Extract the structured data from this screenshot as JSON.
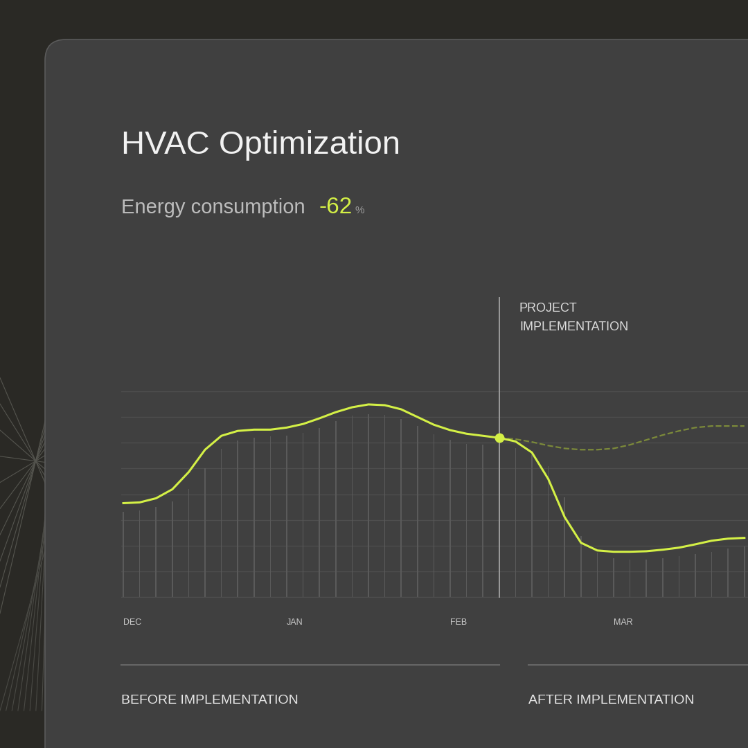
{
  "chart_data": {
    "type": "bar",
    "title": "HVAC Optimization",
    "kpi": {
      "label": "Energy consumption",
      "value": -62,
      "unit": "%"
    },
    "categories": [
      "DEC",
      null,
      null,
      null,
      null,
      null,
      null,
      null,
      null,
      null,
      "JAN",
      null,
      null,
      null,
      null,
      null,
      null,
      null,
      null,
      null,
      "FEB",
      null,
      null,
      null,
      null,
      null,
      null,
      null,
      null,
      null,
      "MAR",
      null,
      null,
      null,
      null,
      null,
      null,
      null,
      null
    ],
    "series": [
      {
        "type": "bar",
        "color": "#5a5a5a",
        "values": [
          3.32,
          3.38,
          3.49,
          3.73,
          4.19,
          5.0,
          5.76,
          6.08,
          6.19,
          6.24,
          6.27,
          6.38,
          6.57,
          6.84,
          7.05,
          7.11,
          7.08,
          6.92,
          6.65,
          6.32,
          6.11,
          5.95,
          5.92,
          5.9,
          5.78,
          5.54,
          5.08,
          3.89,
          2.38,
          1.73,
          1.51,
          1.46,
          1.46,
          1.51,
          1.59,
          1.68,
          1.76,
          1.89,
          1.97
        ]
      },
      {
        "type": "line",
        "color": "#d4f046",
        "line_style": "solid",
        "values": [
          3.65,
          3.68,
          3.84,
          4.19,
          4.86,
          5.73,
          6.27,
          6.46,
          6.51,
          6.51,
          6.59,
          6.73,
          6.95,
          7.19,
          7.38,
          7.49,
          7.46,
          7.3,
          7.0,
          6.7,
          6.49,
          6.35,
          6.27,
          6.19,
          6.05,
          5.62,
          4.59,
          3.11,
          2.11,
          1.81,
          1.76,
          1.76,
          1.78,
          1.84,
          1.92,
          2.05,
          2.19,
          2.27,
          2.3
        ]
      },
      {
        "type": "line",
        "color": "#7c8a3a",
        "line_style": "dashed",
        "values": [
          null,
          null,
          null,
          null,
          null,
          null,
          null,
          null,
          null,
          null,
          null,
          null,
          null,
          null,
          null,
          null,
          null,
          null,
          null,
          null,
          null,
          null,
          null,
          6.19,
          6.14,
          6.03,
          5.89,
          5.78,
          5.73,
          5.73,
          5.78,
          5.92,
          6.11,
          6.3,
          6.46,
          6.59,
          6.65,
          6.65,
          6.65
        ]
      }
    ],
    "annotations": [
      {
        "text": "PROJECT\nIMPLEMENTATION",
        "x": 23
      }
    ],
    "periods": [
      {
        "label": "BEFORE IMPLEMENTATION"
      },
      {
        "label": "AFTER IMPLEMENTATION"
      }
    ],
    "ylim": [
      0,
      8
    ],
    "yticks": [
      0,
      1,
      2,
      3,
      4,
      5,
      6,
      7,
      8
    ],
    "grid": true,
    "tick_labels": "x"
  }
}
